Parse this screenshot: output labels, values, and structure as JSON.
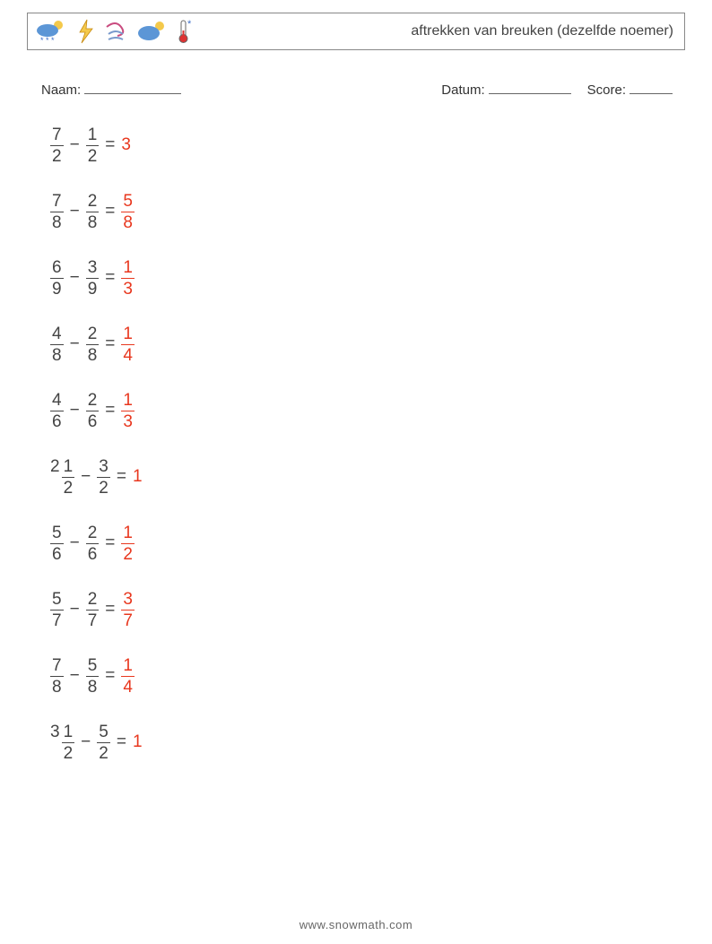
{
  "header": {
    "title": "aftrekken van breuken (dezelfde noemer)",
    "icons": [
      {
        "name": "cloud-moon-snow-icon",
        "bg": "#5c96d6",
        "accent": "#f4c94b"
      },
      {
        "name": "lightning-icon",
        "bg": "none",
        "accent": "#f4c94b"
      },
      {
        "name": "wind-icon",
        "bg": "none",
        "accent": "#c94b7f"
      },
      {
        "name": "cloud-moon-icon",
        "bg": "#5c96d6",
        "accent": "#f4c94b"
      },
      {
        "name": "thermometer-cold-icon",
        "bg": "none",
        "accent": "#3d6fc9"
      }
    ]
  },
  "meta": {
    "name_label": "Naam:",
    "date_label": "Datum:",
    "score_label": "Score:",
    "name_blank_width": 108,
    "date_blank_width": 92,
    "score_blank_width": 48
  },
  "style": {
    "fraction_fontsize": 19,
    "text_color": "#444444",
    "answer_color": "#e8371e",
    "operator": "−",
    "equals": "="
  },
  "problems": [
    {
      "a": {
        "n": "7",
        "d": "2"
      },
      "b": {
        "n": "1",
        "d": "2"
      },
      "ans": {
        "int": "3"
      }
    },
    {
      "a": {
        "n": "7",
        "d": "8"
      },
      "b": {
        "n": "2",
        "d": "8"
      },
      "ans": {
        "n": "5",
        "d": "8"
      }
    },
    {
      "a": {
        "n": "6",
        "d": "9"
      },
      "b": {
        "n": "3",
        "d": "9"
      },
      "ans": {
        "n": "1",
        "d": "3"
      }
    },
    {
      "a": {
        "n": "4",
        "d": "8"
      },
      "b": {
        "n": "2",
        "d": "8"
      },
      "ans": {
        "n": "1",
        "d": "4"
      }
    },
    {
      "a": {
        "n": "4",
        "d": "6"
      },
      "b": {
        "n": "2",
        "d": "6"
      },
      "ans": {
        "n": "1",
        "d": "3"
      }
    },
    {
      "a": {
        "whole": "2",
        "n": "1",
        "d": "2"
      },
      "b": {
        "n": "3",
        "d": "2"
      },
      "ans": {
        "int": "1"
      }
    },
    {
      "a": {
        "n": "5",
        "d": "6"
      },
      "b": {
        "n": "2",
        "d": "6"
      },
      "ans": {
        "n": "1",
        "d": "2"
      }
    },
    {
      "a": {
        "n": "5",
        "d": "7"
      },
      "b": {
        "n": "2",
        "d": "7"
      },
      "ans": {
        "n": "3",
        "d": "7"
      }
    },
    {
      "a": {
        "n": "7",
        "d": "8"
      },
      "b": {
        "n": "5",
        "d": "8"
      },
      "ans": {
        "n": "1",
        "d": "4"
      }
    },
    {
      "a": {
        "whole": "3",
        "n": "1",
        "d": "2"
      },
      "b": {
        "n": "5",
        "d": "2"
      },
      "ans": {
        "int": "1"
      }
    }
  ],
  "footer": {
    "text": "www.snowmath.com"
  }
}
